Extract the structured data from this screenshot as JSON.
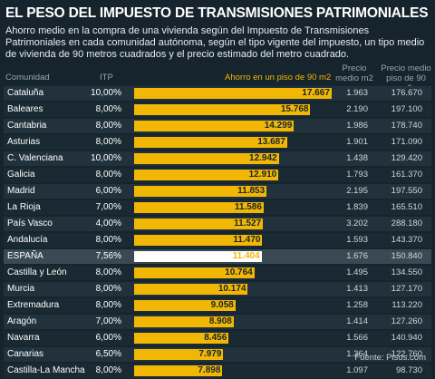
{
  "title": "EL PESO DEL IMPUESTO DE TRANSMISIONES PATRIMONIALES",
  "subtitle": "Ahorro medio en la compra de una vivienda según del Impuesto de Transmisiones Patrimoniales en cada comunidad autónoma, según el tipo vigente del impuesto, un tipo medio de vivienda de 90 metros cuadrados y el precio estimado del metro cuadrado.",
  "headers": {
    "comunidad": "Comunidad",
    "itp": "ITP",
    "ahorro": "Ahorro en un piso de 90 m2",
    "precio_l1": "Precio",
    "precio_l2": "medio m2",
    "medio_l1": "Precio medio",
    "medio_l2": "piso de 90 m2"
  },
  "source": "Fuente: Pisos.com",
  "colors": {
    "bar": "#f2b705",
    "highlight_bar": "#ffffff",
    "background": "#16242d"
  },
  "chart_data": {
    "type": "bar",
    "orientation": "horizontal",
    "title": "EL PESO DEL IMPUESTO DE TRANSMISIONES PATRIMONIALES",
    "value_label": "Ahorro en un piso de 90 m2",
    "xlim": [
      0,
      18000
    ],
    "highlight": "ESPAÑA",
    "categories": [
      "Cataluña",
      "Baleares",
      "Cantabria",
      "Asturias",
      "C. Valenciana",
      "Galicia",
      "Madrid",
      "La Rioja",
      "País Vasco",
      "Andalucía",
      "ESPAÑA",
      "Castilla y León",
      "Murcia",
      "Extremadura",
      "Aragón",
      "Navarra",
      "Canarias",
      "Castilla-La Mancha"
    ],
    "itp": [
      "10,00%",
      "8,00%",
      "8,00%",
      "8,00%",
      "10,00%",
      "8,00%",
      "6,00%",
      "7,00%",
      "4,00%",
      "8,00%",
      "7,56%",
      "8,00%",
      "8,00%",
      "8,00%",
      "7,00%",
      "6,00%",
      "6,50%",
      "8,00%"
    ],
    "values": [
      17667,
      15768,
      14299,
      13687,
      12942,
      12910,
      11853,
      11586,
      11527,
      11470,
      11404,
      10764,
      10174,
      9058,
      8908,
      8456,
      7979,
      7898
    ],
    "value_labels": [
      "17.667",
      "15.768",
      "14.299",
      "13.687",
      "12.942",
      "12.910",
      "11.853",
      "11.586",
      "11.527",
      "11.470",
      "11.404",
      "10.764",
      "10.174",
      "9.058",
      "8.908",
      "8.456",
      "7.979",
      "7.898"
    ],
    "precio_m2": [
      "1.963",
      "2.190",
      "1.986",
      "1.901",
      "1.438",
      "1.793",
      "2.195",
      "1.839",
      "3.202",
      "1.593",
      "1.676",
      "1.495",
      "1.413",
      "1.258",
      "1.414",
      "1.566",
      "1.364",
      "1.097"
    ],
    "precio_piso": [
      "176.670",
      "197.100",
      "178.740",
      "171.090",
      "129.420",
      "161.370",
      "197.550",
      "165.510",
      "288.180",
      "143.370",
      "150.840",
      "134.550",
      "127.170",
      "113.220",
      "127.260",
      "140.940",
      "122.760",
      "98.730"
    ]
  }
}
